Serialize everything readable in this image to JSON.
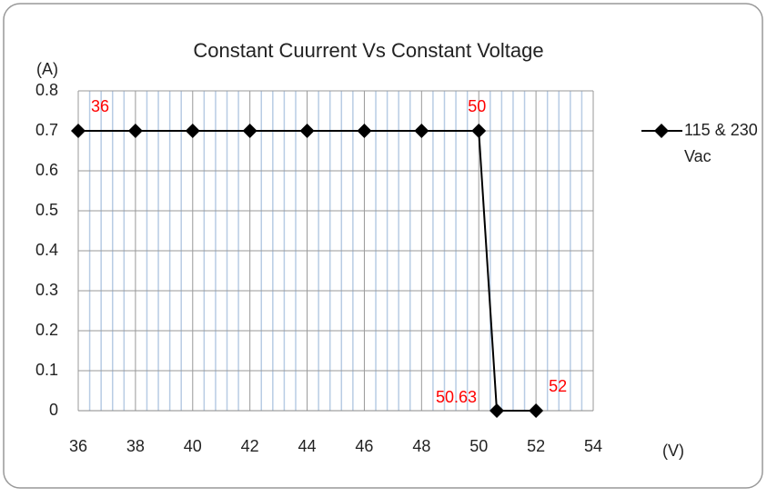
{
  "chart_data": {
    "type": "line",
    "title": "Constant Cuurrent  Vs Constant Voltage",
    "y_label": "(A)",
    "x_label": "(V)",
    "x": [
      36,
      38,
      40,
      42,
      44,
      46,
      48,
      50,
      50.63,
      52
    ],
    "series": [
      {
        "name": "115 & 230 Vac",
        "color": "#000000",
        "values": [
          0.7,
          0.7,
          0.7,
          0.7,
          0.7,
          0.7,
          0.7,
          0.7,
          0,
          0
        ]
      }
    ],
    "xlim": [
      36,
      54
    ],
    "xticks": [
      36,
      38,
      40,
      42,
      44,
      46,
      48,
      50,
      52,
      54
    ],
    "ylim": [
      0,
      0.8
    ],
    "yticks": [
      0,
      0.1,
      0.2,
      0.3,
      0.4,
      0.5,
      0.6,
      0.7,
      0.8
    ],
    "grid": true,
    "minor_grid": true,
    "legend": "right",
    "annotations": [
      {
        "text": "36",
        "x": 36,
        "y": 0.7,
        "position": "above-right"
      },
      {
        "text": "50",
        "x": 50,
        "y": 0.7,
        "position": "above-left"
      },
      {
        "text": "50.63",
        "x": 50.63,
        "y": 0,
        "position": "left"
      },
      {
        "text": "52",
        "x": 52,
        "y": 0,
        "position": "above-right"
      }
    ]
  }
}
